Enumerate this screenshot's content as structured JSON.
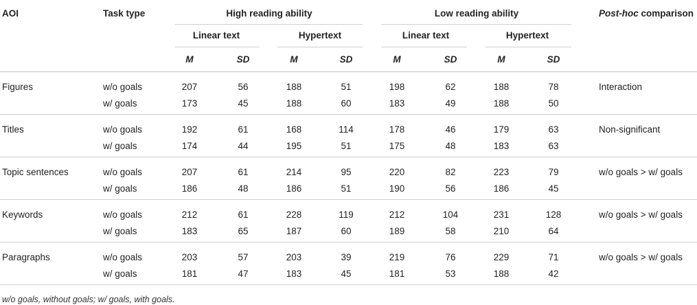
{
  "header": {
    "aoi": "AOI",
    "task_type": "Task type",
    "high": "High reading ability",
    "low": "Low reading ability",
    "posthoc_italic": "Post-hoc",
    "posthoc_rest": " comparison",
    "linear": "Linear text",
    "hyper": "Hypertext",
    "m": "M",
    "sd": "SD"
  },
  "groups": [
    {
      "aoi": "Figures",
      "posthoc": "Interaction",
      "rows": [
        {
          "task": "w/o goals",
          "vals": [
            "207",
            "56",
            "188",
            "51",
            "198",
            "62",
            "188",
            "78"
          ]
        },
        {
          "task": "w/ goals",
          "vals": [
            "173",
            "45",
            "188",
            "60",
            "183",
            "49",
            "188",
            "50"
          ]
        }
      ]
    },
    {
      "aoi": "Titles",
      "posthoc": "Non-significant",
      "rows": [
        {
          "task": "w/o goals",
          "vals": [
            "192",
            "61",
            "168",
            "114",
            "178",
            "46",
            "179",
            "63"
          ]
        },
        {
          "task": "w/ goals",
          "vals": [
            "174",
            "44",
            "195",
            "51",
            "175",
            "48",
            "183",
            "63"
          ]
        }
      ]
    },
    {
      "aoi": "Topic sentences",
      "posthoc": "w/o goals > w/ goals",
      "rows": [
        {
          "task": "w/o goals",
          "vals": [
            "207",
            "61",
            "214",
            "95",
            "220",
            "82",
            "223",
            "79"
          ]
        },
        {
          "task": "w/ goals",
          "vals": [
            "186",
            "48",
            "186",
            "51",
            "190",
            "56",
            "186",
            "45"
          ]
        }
      ]
    },
    {
      "aoi": "Keywords",
      "posthoc": "w/o goals > w/ goals",
      "rows": [
        {
          "task": "w/o goals",
          "vals": [
            "212",
            "61",
            "228",
            "119",
            "212",
            "104",
            "231",
            "128"
          ]
        },
        {
          "task": "w/ goals",
          "vals": [
            "183",
            "65",
            "187",
            "60",
            "189",
            "58",
            "210",
            "64"
          ]
        }
      ]
    },
    {
      "aoi": "Paragraphs",
      "posthoc": "w/o goals > w/ goals",
      "rows": [
        {
          "task": "w/o goals",
          "vals": [
            "203",
            "57",
            "203",
            "39",
            "219",
            "76",
            "229",
            "71"
          ]
        },
        {
          "task": "w/ goals",
          "vals": [
            "181",
            "47",
            "183",
            "45",
            "181",
            "53",
            "188",
            "42"
          ]
        }
      ]
    }
  ],
  "footnote": "w/o goals, without goals; w/ goals, with goals."
}
